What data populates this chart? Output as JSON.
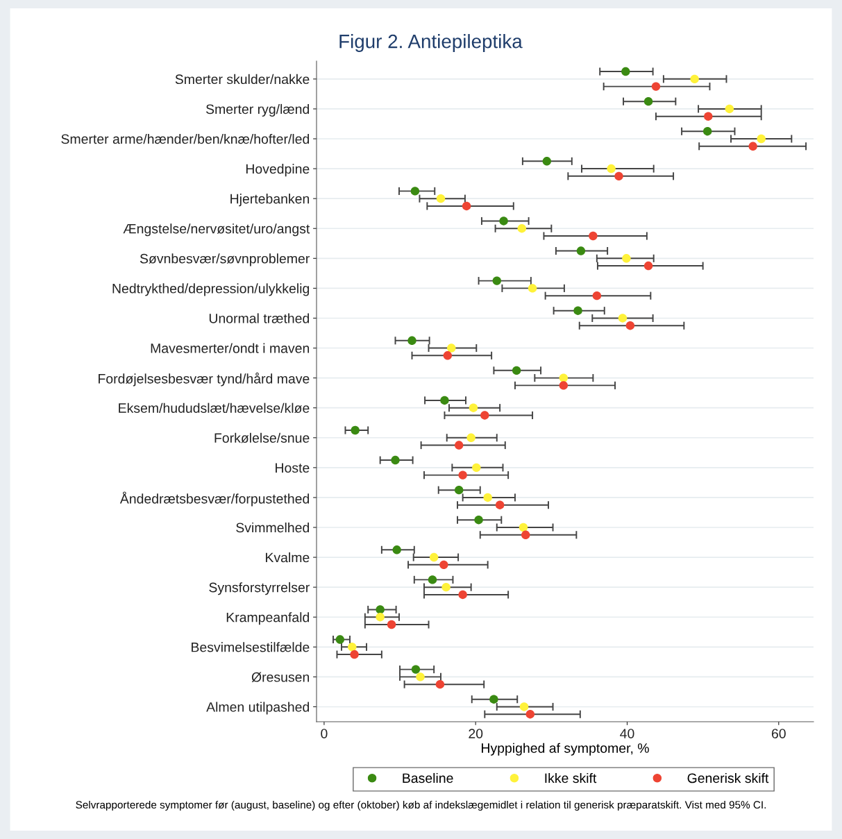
{
  "chart_data": {
    "type": "scatter",
    "orientation": "horizontal",
    "title": "Figur 2. Antiepileptika",
    "xlabel": "Hyppighed af symptomer, %",
    "categories": [
      "Smerter skulder/nakke",
      "Smerter ryg/lænd",
      "Smerter arme/hænder/ben/knæ/hofter/led",
      "Hovedpine",
      "Hjertebanken",
      "Ængstelse/nervøsitet/uro/angst",
      "Søvnbesvær/søvnproblemer",
      "Nedtrykthed/depression/ulykkelig",
      "Unormal træthed",
      "Mavesmerter/ondt i maven",
      "Fordøjelsesbesvær tynd/hård mave",
      "Eksem/hududslæt/hævelse/kløe",
      "Forkølelse/snue",
      "Hoste",
      "Åndedrætsbesvær/forpustethed",
      "Svimmelhed",
      "Kvalme",
      "Synsforstyrrelser",
      "Krampeanfald",
      "Besvimelsestilfælde",
      "Øresusen",
      "Almen utilpashed"
    ],
    "series": [
      {
        "name": "Baseline",
        "color": "#3a8a12",
        "values": [
          39.8,
          42.8,
          50.6,
          29.4,
          12.0,
          23.7,
          33.9,
          22.8,
          33.5,
          11.6,
          25.4,
          15.9,
          4.1,
          9.4,
          17.8,
          20.4,
          9.6,
          14.3,
          7.4,
          2.1,
          12.1,
          22.4
        ],
        "errors": [
          [
            36.4,
            43.4
          ],
          [
            39.5,
            46.4
          ],
          [
            47.2,
            54.2
          ],
          [
            26.2,
            32.7
          ],
          [
            9.9,
            14.6
          ],
          [
            20.8,
            27.0
          ],
          [
            30.6,
            37.4
          ],
          [
            20.4,
            27.3
          ],
          [
            30.3,
            37.0
          ],
          [
            9.4,
            13.9
          ],
          [
            22.4,
            28.6
          ],
          [
            13.3,
            18.7
          ],
          [
            2.8,
            5.8
          ],
          [
            7.4,
            11.7
          ],
          [
            15.1,
            20.6
          ],
          [
            17.6,
            23.4
          ],
          [
            7.6,
            11.9
          ],
          [
            11.9,
            17.0
          ],
          [
            5.8,
            9.5
          ],
          [
            1.2,
            3.4
          ],
          [
            10.0,
            14.5
          ],
          [
            19.5,
            25.5
          ]
        ]
      },
      {
        "name": "Ikke skift",
        "color": "#fff23a",
        "values": [
          48.9,
          53.5,
          57.7,
          37.9,
          15.4,
          26.1,
          39.9,
          27.5,
          39.4,
          16.8,
          31.6,
          19.7,
          19.4,
          20.1,
          21.6,
          26.3,
          14.5,
          16.1,
          7.4,
          3.7,
          12.7,
          26.4
        ],
        "errors": [
          [
            44.8,
            53.1
          ],
          [
            49.4,
            57.7
          ],
          [
            53.7,
            61.7
          ],
          [
            34.0,
            43.5
          ],
          [
            12.6,
            18.6
          ],
          [
            22.6,
            30.0
          ],
          [
            36.0,
            43.5
          ],
          [
            23.5,
            31.7
          ],
          [
            35.4,
            43.4
          ],
          [
            13.8,
            20.1
          ],
          [
            27.8,
            35.5
          ],
          [
            16.5,
            23.2
          ],
          [
            16.2,
            22.8
          ],
          [
            16.9,
            23.6
          ],
          [
            18.3,
            25.2
          ],
          [
            22.8,
            30.2
          ],
          [
            11.8,
            17.7
          ],
          [
            13.2,
            19.4
          ],
          [
            5.4,
            9.9
          ],
          [
            2.3,
            5.6
          ],
          [
            10.0,
            15.4
          ],
          [
            22.8,
            30.2
          ]
        ]
      },
      {
        "name": "Generisk skift",
        "color": "#ee4433",
        "values": [
          43.8,
          50.7,
          56.6,
          38.9,
          18.8,
          35.5,
          42.8,
          36.0,
          40.4,
          16.3,
          31.6,
          21.2,
          17.8,
          18.3,
          23.2,
          26.6,
          15.8,
          18.3,
          8.9,
          4.0,
          15.3,
          27.2
        ],
        "errors": [
          [
            36.9,
            50.9
          ],
          [
            43.8,
            57.7
          ],
          [
            49.5,
            63.6
          ],
          [
            32.2,
            46.1
          ],
          [
            13.6,
            25.0
          ],
          [
            29.0,
            42.6
          ],
          [
            36.1,
            50.0
          ],
          [
            29.2,
            43.1
          ],
          [
            33.7,
            47.5
          ],
          [
            11.6,
            22.1
          ],
          [
            25.2,
            38.4
          ],
          [
            15.9,
            27.5
          ],
          [
            12.8,
            23.9
          ],
          [
            13.2,
            24.3
          ],
          [
            17.6,
            29.6
          ],
          [
            20.6,
            33.3
          ],
          [
            11.1,
            21.6
          ],
          [
            13.2,
            24.3
          ],
          [
            5.4,
            13.8
          ],
          [
            1.7,
            7.6
          ],
          [
            10.6,
            21.1
          ],
          [
            21.2,
            33.8
          ]
        ]
      }
    ],
    "xlim": [
      -1,
      64.6
    ],
    "xticks": [
      0,
      20,
      40,
      60
    ],
    "grid": "y",
    "legend": "bottom",
    "marker": "circle",
    "annotations": [
      "Selvrapporterede symptomer før (august, baseline) og efter (oktober) køb af indekslægemidlet i relation til generisk præparatskift. Vist med 95% CI."
    ]
  }
}
